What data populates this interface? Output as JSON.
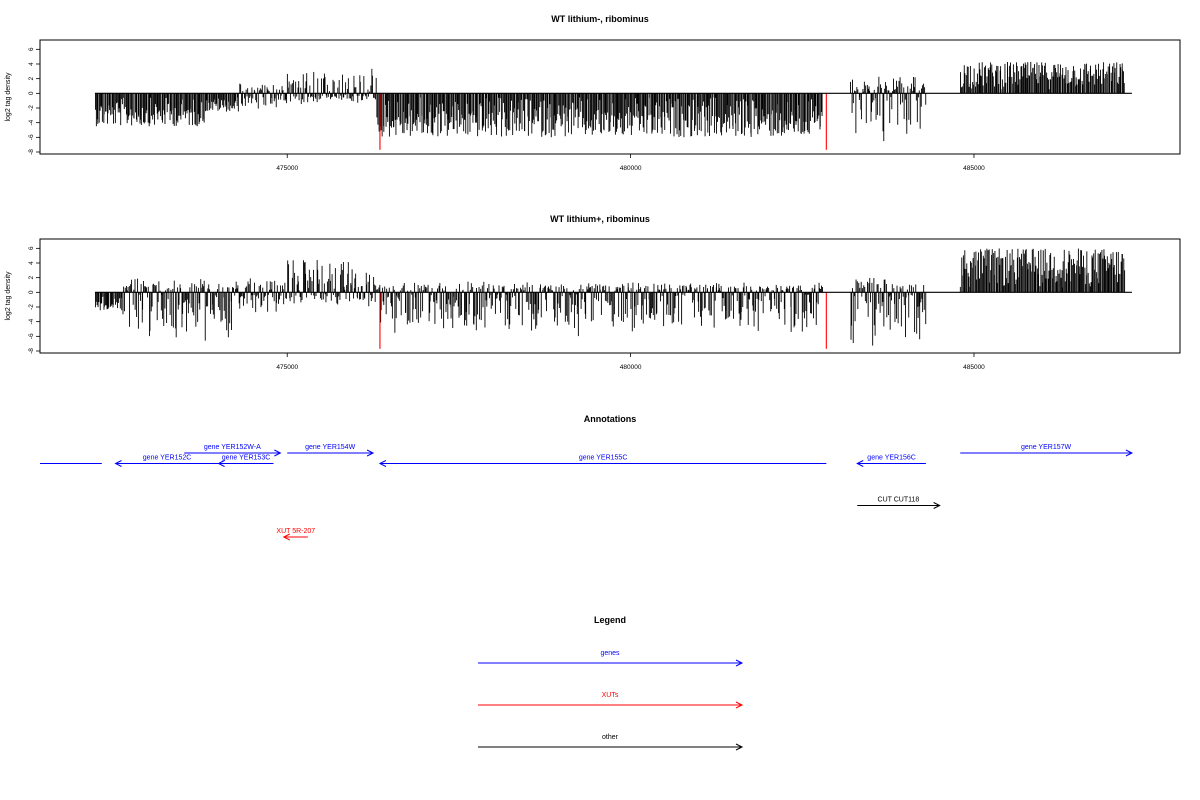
{
  "chart_data": [
    {
      "type": "bar",
      "title": "WT lithium-, ribominus",
      "ylabel": "log2 tag density",
      "xlabel": "",
      "xlim": [
        471400,
        488000
      ],
      "ylim": [
        -8,
        7
      ],
      "x_ticks": [
        475000,
        480000,
        485000
      ],
      "x_tick_labels": [
        "475000",
        "480000",
        "485000"
      ],
      "y_ticks": [
        -8,
        -6,
        -4,
        -2,
        0,
        2,
        4,
        6
      ],
      "y_tick_labels": [
        "-8",
        "-6",
        "-4",
        "-2",
        "0",
        "2",
        "4",
        "6"
      ],
      "baseline": {
        "from": 472200,
        "to": 487300
      },
      "bar_color": "#000000",
      "segments": [
        {
          "from": 472200,
          "to": 473800,
          "min": -4.5,
          "max": 0
        },
        {
          "from": 473800,
          "to": 474300,
          "min": -2.5,
          "max": 0
        },
        {
          "from": 474300,
          "to": 475000,
          "min": -2.5,
          "max": 1.5
        },
        {
          "from": 475000,
          "to": 476300,
          "min": -1.5,
          "max": 3.5
        },
        {
          "from": 476300,
          "to": 482800,
          "min": -6,
          "max": 0
        },
        {
          "from": 483200,
          "to": 484300,
          "min": -7.5,
          "max": 2.5
        },
        {
          "from": 484800,
          "to": 487200,
          "min": 0,
          "max": 4.3
        }
      ],
      "highlights": [
        {
          "x": 476350,
          "value": -7.7,
          "color": "#ff0000"
        },
        {
          "x": 482850,
          "value": -7.7,
          "color": "#ff0000"
        }
      ]
    },
    {
      "type": "bar",
      "title": "WT lithium+, ribominus",
      "ylabel": "log2 tag density",
      "xlabel": "",
      "xlim": [
        471400,
        488000
      ],
      "ylim": [
        -8,
        7
      ],
      "x_ticks": [
        475000,
        480000,
        485000
      ],
      "x_tick_labels": [
        "475000",
        "480000",
        "485000"
      ],
      "y_ticks": [
        -8,
        -6,
        -4,
        -2,
        0,
        2,
        4,
        6
      ],
      "y_tick_labels": [
        "-8",
        "-6",
        "-4",
        "-2",
        "0",
        "2",
        "4",
        "6"
      ],
      "baseline": {
        "from": 472200,
        "to": 487300
      },
      "bar_color": "#000000",
      "segments": [
        {
          "from": 472200,
          "to": 472600,
          "min": -2.5,
          "max": 0
        },
        {
          "from": 472600,
          "to": 474200,
          "min": -7.5,
          "max": 2
        },
        {
          "from": 474200,
          "to": 475000,
          "min": -3,
          "max": 2.5
        },
        {
          "from": 475000,
          "to": 476300,
          "min": -2,
          "max": 5.5
        },
        {
          "from": 476300,
          "to": 482800,
          "min": -6.5,
          "max": 1.5
        },
        {
          "from": 483200,
          "to": 484300,
          "min": -7.5,
          "max": 2.2
        },
        {
          "from": 484800,
          "to": 487200,
          "min": 0,
          "max": 6
        }
      ],
      "highlights": [
        {
          "x": 476350,
          "value": -7.7,
          "color": "#ff0000"
        },
        {
          "x": 482850,
          "value": -7.7,
          "color": "#ff0000"
        }
      ]
    }
  ],
  "annotations": {
    "title": "Annotations",
    "items": [
      {
        "label": "",
        "from": 471400,
        "to": 472300,
        "row": 1,
        "strand": "-",
        "color": "#0000ff"
      },
      {
        "label": "gene YER152W-A",
        "from": 473500,
        "to": 474900,
        "row": 0,
        "strand": "+",
        "color": "#0000ff"
      },
      {
        "label": "gene YER152C",
        "from": 472500,
        "to": 474000,
        "row": 1,
        "strand": "-",
        "color": "#0000ff"
      },
      {
        "label": "gene YER153C",
        "from": 474000,
        "to": 474800,
        "row": 1,
        "strand": "-",
        "color": "#0000ff"
      },
      {
        "label": "gene YER154W",
        "from": 475000,
        "to": 476250,
        "row": 0,
        "strand": "+",
        "color": "#0000ff"
      },
      {
        "label": "gene YER155C",
        "from": 476350,
        "to": 482850,
        "row": 1,
        "strand": "-",
        "color": "#0000ff"
      },
      {
        "label": "gene YER156C",
        "from": 483300,
        "to": 484300,
        "row": 1,
        "strand": "-",
        "color": "#0000ff"
      },
      {
        "label": "gene YER157W",
        "from": 484800,
        "to": 487300,
        "row": 0,
        "strand": "+",
        "color": "#0000ff"
      },
      {
        "label": "CUT CUT118",
        "from": 483300,
        "to": 484500,
        "row": 5,
        "strand": "+",
        "color": "#000000"
      },
      {
        "label": "XUT 5R-207",
        "from": 474950,
        "to": 475300,
        "row": 8,
        "strand": "-",
        "color": "#ff0000"
      }
    ]
  },
  "legend": {
    "title": "Legend",
    "items": [
      {
        "label": "genes",
        "color": "#0000ff"
      },
      {
        "label": "XUTs",
        "color": "#ff0000"
      },
      {
        "label": "other",
        "color": "#000000"
      }
    ]
  }
}
